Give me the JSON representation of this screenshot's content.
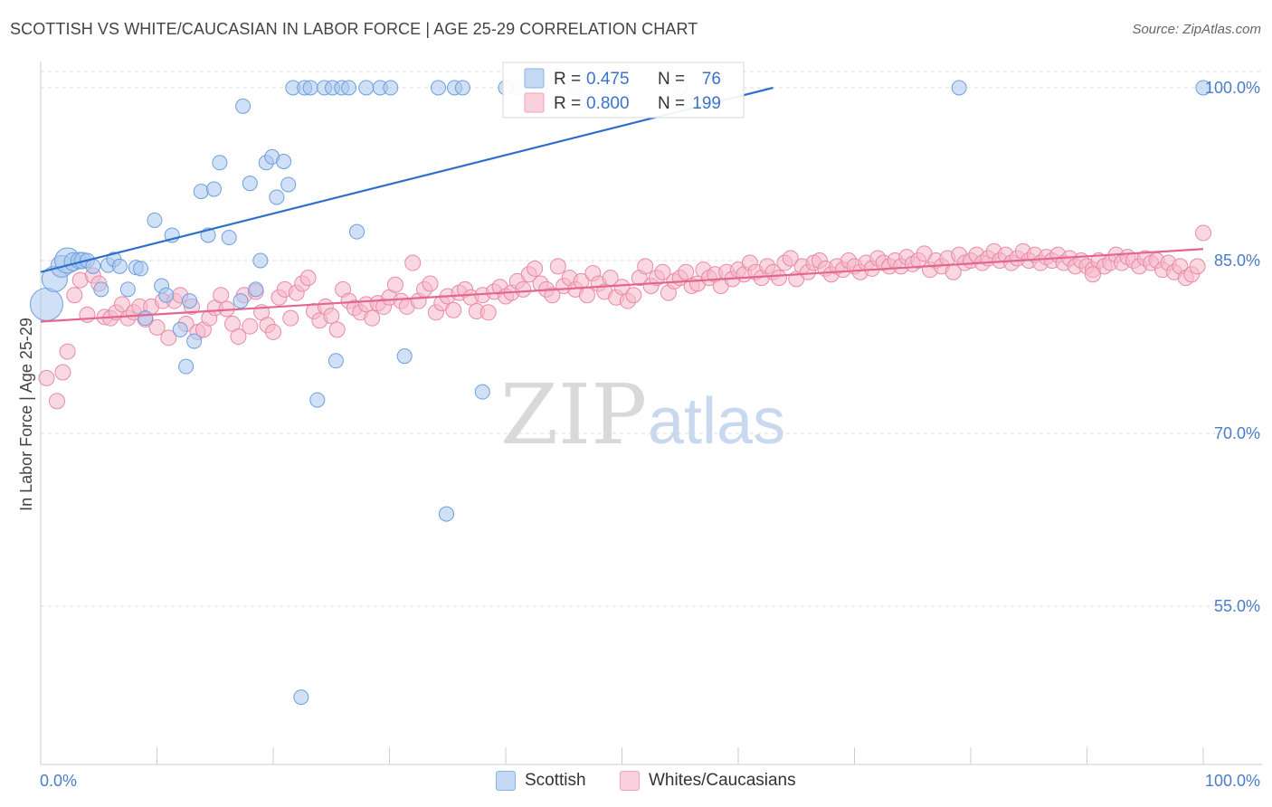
{
  "title": "SCOTTISH VS WHITE/CAUCASIAN IN LABOR FORCE | AGE 25-29 CORRELATION CHART",
  "source": "Source: ZipAtlas.com",
  "watermark": {
    "zip": "ZIP",
    "atlas": "atlas"
  },
  "chart_data": {
    "type": "scatter",
    "title": "SCOTTISH VS WHITE/CAUCASIAN IN LABOR FORCE | AGE 25-29 CORRELATION CHART",
    "ylabel": "In Labor Force | Age 25-29",
    "xlabel": "",
    "x_tick_labels": [
      "0.0%",
      "100.0%"
    ],
    "y_tick_labels": [
      "100.0%",
      "85.0%",
      "70.0%",
      "55.0%"
    ],
    "y_ticks": [
      100,
      85,
      70,
      55
    ],
    "xlim": [
      0,
      100
    ],
    "ylim": [
      41.5,
      102.5
    ],
    "grid": true,
    "legend_position": "top-center",
    "colors": {
      "scottish": "#a9c7ef",
      "scottish_edge": "#6f9fdc",
      "scottish_line": "#2f6fcc",
      "white": "#f6b8cb",
      "white_edge": "#e88aa8",
      "white_line": "#e3668f"
    },
    "legend": [
      {
        "name": "Scottish",
        "r_label": "R =",
        "r": "0.475",
        "n_label": "N =",
        "n": "76"
      },
      {
        "name": "Whites/Caucasians",
        "r_label": "R =",
        "r": "0.800",
        "n_label": "N =",
        "n": "199"
      }
    ],
    "series": [
      {
        "name": "Scottish",
        "trend": {
          "x0": 0,
          "y0": 84.0,
          "x1": 63,
          "y1": 100.0
        },
        "points": [
          [
            0.5,
            81.2,
            18
          ],
          [
            1.2,
            83.4,
            14
          ],
          [
            1.8,
            84.5,
            12
          ],
          [
            2.3,
            85.0,
            14
          ],
          [
            2.8,
            84.9,
            10
          ],
          [
            3.3,
            85.0,
            9
          ],
          [
            3.6,
            85.0,
            9
          ],
          [
            4.0,
            85.0,
            8
          ],
          [
            4.5,
            84.5,
            8
          ],
          [
            5.2,
            82.5,
            8
          ],
          [
            5.8,
            84.6,
            8
          ],
          [
            6.3,
            85.1,
            8
          ],
          [
            6.8,
            84.5,
            8
          ],
          [
            7.5,
            82.5,
            8
          ],
          [
            8.2,
            84.4,
            8
          ],
          [
            8.6,
            84.3,
            8
          ],
          [
            9.0,
            80.0,
            8
          ],
          [
            9.8,
            88.5,
            8
          ],
          [
            10.4,
            82.8,
            8
          ],
          [
            10.8,
            82.0,
            8
          ],
          [
            11.3,
            87.2,
            8
          ],
          [
            12.0,
            79.0,
            8
          ],
          [
            12.5,
            75.8,
            8
          ],
          [
            12.8,
            81.5,
            8
          ],
          [
            13.2,
            78.0,
            8
          ],
          [
            13.8,
            91.0,
            8
          ],
          [
            14.4,
            87.2,
            8
          ],
          [
            14.9,
            91.2,
            8
          ],
          [
            15.4,
            93.5,
            8
          ],
          [
            16.2,
            87.0,
            8
          ],
          [
            17.2,
            81.5,
            8
          ],
          [
            17.4,
            98.4,
            8
          ],
          [
            18.0,
            91.7,
            8
          ],
          [
            18.5,
            82.5,
            8
          ],
          [
            18.9,
            85.0,
            8
          ],
          [
            19.4,
            93.5,
            8
          ],
          [
            19.9,
            94.0,
            8
          ],
          [
            20.3,
            90.5,
            8
          ],
          [
            20.9,
            93.6,
            8
          ],
          [
            21.3,
            91.6,
            8
          ],
          [
            21.7,
            100.0,
            8
          ],
          [
            22.4,
            47.1,
            8
          ],
          [
            22.7,
            100.0,
            8
          ],
          [
            23.2,
            100.0,
            8
          ],
          [
            23.8,
            72.9,
            8
          ],
          [
            24.4,
            100.0,
            8
          ],
          [
            25.1,
            100.0,
            8
          ],
          [
            25.4,
            76.3,
            8
          ],
          [
            25.9,
            100.0,
            8
          ],
          [
            26.5,
            100.0,
            8
          ],
          [
            27.2,
            87.5,
            8
          ],
          [
            28.0,
            100.0,
            8
          ],
          [
            29.2,
            100.0,
            8
          ],
          [
            30.1,
            100.0,
            8
          ],
          [
            31.3,
            76.7,
            8
          ],
          [
            34.2,
            100.0,
            8
          ],
          [
            34.9,
            63.0,
            8
          ],
          [
            35.6,
            100.0,
            8
          ],
          [
            36.3,
            100.0,
            8
          ],
          [
            38.0,
            73.6,
            8
          ],
          [
            40.0,
            100.0,
            8
          ],
          [
            41.2,
            100.0,
            8
          ],
          [
            43.0,
            100.0,
            8
          ],
          [
            46.0,
            100.0,
            8
          ],
          [
            49.0,
            100.0,
            8
          ],
          [
            55.0,
            100.0,
            8
          ],
          [
            79.0,
            100.0,
            8
          ],
          [
            100.0,
            100.0,
            8
          ]
        ]
      },
      {
        "name": "Whites/Caucasians",
        "trend": {
          "x0": 0,
          "y0": 79.7,
          "x1": 100,
          "y1": 86.0
        },
        "points": [
          [
            0.5,
            74.8
          ],
          [
            1.4,
            72.8
          ],
          [
            1.9,
            75.3
          ],
          [
            2.3,
            77.1
          ],
          [
            2.9,
            82.0
          ],
          [
            3.4,
            83.3
          ],
          [
            4.0,
            80.3
          ],
          [
            4.5,
            83.7
          ],
          [
            5.0,
            83.0
          ],
          [
            5.5,
            80.1
          ],
          [
            6.0,
            80.0
          ],
          [
            6.5,
            80.5
          ],
          [
            7.0,
            81.2
          ],
          [
            7.5,
            80.0
          ],
          [
            8.0,
            80.5
          ],
          [
            8.5,
            81.0
          ],
          [
            9.0,
            79.9
          ],
          [
            9.5,
            81.0
          ],
          [
            10.0,
            79.2
          ],
          [
            10.5,
            81.5
          ],
          [
            11.0,
            78.3
          ],
          [
            11.5,
            81.5
          ],
          [
            12.0,
            82.0
          ],
          [
            12.5,
            79.5
          ],
          [
            13.0,
            81.0
          ],
          [
            13.5,
            78.8
          ],
          [
            14.0,
            79.0
          ],
          [
            14.5,
            80.0
          ],
          [
            15.0,
            80.9
          ],
          [
            15.5,
            82.0
          ],
          [
            16.0,
            80.8
          ],
          [
            16.5,
            79.5
          ],
          [
            17.0,
            78.4
          ],
          [
            17.5,
            82.0
          ],
          [
            18.0,
            79.3
          ],
          [
            18.5,
            82.3
          ],
          [
            19.0,
            80.5
          ],
          [
            19.5,
            79.4
          ],
          [
            20.0,
            78.8
          ],
          [
            20.5,
            81.8
          ],
          [
            21.0,
            82.5
          ],
          [
            21.5,
            80.0
          ],
          [
            22.0,
            82.2
          ],
          [
            22.5,
            83.0
          ],
          [
            23.0,
            83.5
          ],
          [
            23.5,
            80.6
          ],
          [
            24.0,
            79.8
          ],
          [
            24.5,
            81.0
          ],
          [
            25.0,
            80.2
          ],
          [
            25.5,
            79.0
          ],
          [
            26.0,
            82.5
          ],
          [
            26.5,
            81.5
          ],
          [
            27.0,
            80.9
          ],
          [
            27.5,
            80.5
          ],
          [
            28.0,
            81.2
          ],
          [
            28.5,
            80.0
          ],
          [
            29.0,
            81.3
          ],
          [
            29.5,
            81.0
          ],
          [
            30.0,
            81.8
          ],
          [
            30.5,
            82.9
          ],
          [
            31.0,
            81.5
          ],
          [
            31.5,
            81.0
          ],
          [
            32.0,
            84.8
          ],
          [
            32.5,
            81.5
          ],
          [
            33.0,
            82.5
          ],
          [
            33.5,
            83.0
          ],
          [
            34.0,
            80.5
          ],
          [
            34.5,
            81.3
          ],
          [
            35.0,
            81.9
          ],
          [
            35.5,
            80.7
          ],
          [
            36.0,
            82.2
          ],
          [
            36.5,
            82.5
          ],
          [
            37.0,
            81.8
          ],
          [
            37.5,
            80.6
          ],
          [
            38.0,
            82.0
          ],
          [
            38.5,
            80.5
          ],
          [
            39.0,
            82.3
          ],
          [
            39.5,
            82.7
          ],
          [
            40.0,
            81.9
          ],
          [
            40.5,
            82.2
          ],
          [
            41.0,
            83.2
          ],
          [
            41.5,
            82.5
          ],
          [
            42.0,
            83.8
          ],
          [
            42.5,
            84.3
          ],
          [
            43.0,
            83.0
          ],
          [
            43.5,
            82.5
          ],
          [
            44.0,
            82.0
          ],
          [
            44.5,
            84.5
          ],
          [
            45.0,
            82.8
          ],
          [
            45.5,
            83.5
          ],
          [
            46.0,
            82.5
          ],
          [
            46.5,
            83.2
          ],
          [
            47.0,
            82.0
          ],
          [
            47.5,
            83.9
          ],
          [
            48.0,
            83.0
          ],
          [
            48.5,
            82.3
          ],
          [
            49.0,
            83.5
          ],
          [
            49.5,
            81.8
          ],
          [
            50.0,
            82.7
          ],
          [
            50.5,
            81.5
          ],
          [
            51.0,
            82.0
          ],
          [
            51.5,
            83.5
          ],
          [
            52.0,
            84.5
          ],
          [
            52.5,
            82.8
          ],
          [
            53.0,
            83.5
          ],
          [
            53.5,
            84.0
          ],
          [
            54.0,
            82.2
          ],
          [
            54.5,
            83.2
          ],
          [
            55.0,
            83.5
          ],
          [
            55.5,
            84.0
          ],
          [
            56.0,
            82.8
          ],
          [
            56.5,
            83.0
          ],
          [
            57.0,
            84.2
          ],
          [
            57.5,
            83.5
          ],
          [
            58.0,
            83.8
          ],
          [
            58.5,
            82.8
          ],
          [
            59.0,
            84.0
          ],
          [
            59.5,
            83.4
          ],
          [
            60.0,
            84.2
          ],
          [
            60.5,
            83.8
          ],
          [
            61.0,
            84.8
          ],
          [
            61.5,
            84.0
          ],
          [
            62.0,
            83.5
          ],
          [
            62.5,
            84.5
          ],
          [
            63.0,
            84.0
          ],
          [
            63.5,
            83.5
          ],
          [
            64.0,
            84.8
          ],
          [
            64.5,
            85.2
          ],
          [
            65.0,
            83.4
          ],
          [
            65.5,
            84.5
          ],
          [
            66.0,
            84.0
          ],
          [
            66.5,
            84.8
          ],
          [
            67.0,
            85.0
          ],
          [
            67.5,
            84.3
          ],
          [
            68.0,
            83.8
          ],
          [
            68.5,
            84.5
          ],
          [
            69.0,
            84.2
          ],
          [
            69.5,
            85.0
          ],
          [
            70.0,
            84.5
          ],
          [
            70.5,
            84.0
          ],
          [
            71.0,
            84.8
          ],
          [
            71.5,
            84.3
          ],
          [
            72.0,
            85.2
          ],
          [
            72.5,
            84.8
          ],
          [
            73.0,
            84.5
          ],
          [
            73.5,
            85.0
          ],
          [
            74.0,
            84.5
          ],
          [
            74.5,
            85.3
          ],
          [
            75.0,
            84.7
          ],
          [
            75.5,
            85.0
          ],
          [
            76.0,
            85.6
          ],
          [
            76.5,
            84.2
          ],
          [
            77.0,
            85.0
          ],
          [
            77.5,
            84.5
          ],
          [
            78.0,
            85.2
          ],
          [
            78.5,
            84.0
          ],
          [
            79.0,
            85.5
          ],
          [
            79.5,
            84.8
          ],
          [
            80.0,
            85.0
          ],
          [
            80.5,
            85.5
          ],
          [
            81.0,
            84.8
          ],
          [
            81.5,
            85.2
          ],
          [
            82.0,
            85.8
          ],
          [
            82.5,
            85.0
          ],
          [
            83.0,
            85.5
          ],
          [
            83.5,
            84.8
          ],
          [
            84.0,
            85.2
          ],
          [
            84.5,
            85.8
          ],
          [
            85.0,
            85.0
          ],
          [
            85.5,
            85.5
          ],
          [
            86.0,
            84.8
          ],
          [
            86.5,
            85.3
          ],
          [
            87.0,
            85.0
          ],
          [
            87.5,
            85.5
          ],
          [
            88.0,
            84.8
          ],
          [
            88.5,
            85.2
          ],
          [
            89.0,
            84.5
          ],
          [
            89.5,
            85.0
          ],
          [
            90.0,
            84.5
          ],
          [
            90.5,
            84.2
          ],
          [
            91.0,
            85.0
          ],
          [
            91.5,
            84.5
          ],
          [
            92.0,
            84.8
          ],
          [
            92.5,
            85.5
          ],
          [
            93.0,
            84.8
          ],
          [
            93.5,
            85.3
          ],
          [
            94.0,
            85.0
          ],
          [
            94.5,
            84.5
          ],
          [
            95.0,
            85.2
          ],
          [
            95.5,
            84.8
          ],
          [
            96.0,
            85.0
          ],
          [
            96.5,
            84.2
          ],
          [
            97.0,
            84.8
          ],
          [
            97.5,
            84.0
          ],
          [
            98.0,
            84.5
          ],
          [
            98.5,
            83.5
          ],
          [
            99.0,
            83.8
          ],
          [
            99.5,
            84.5
          ],
          [
            100.0,
            87.4
          ],
          [
            90.5,
            83.8
          ]
        ]
      }
    ]
  }
}
